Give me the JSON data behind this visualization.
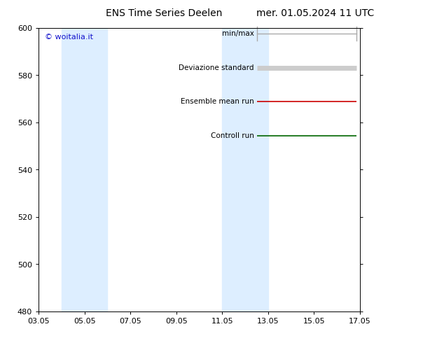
{
  "title_left": "ENS Time Series Deelen",
  "title_right": "mer. 01.05.2024 11 UTC",
  "ylim": [
    480,
    600
  ],
  "yticks": [
    480,
    500,
    520,
    540,
    560,
    580,
    600
  ],
  "xtick_labels": [
    "03.05",
    "05.05",
    "07.05",
    "09.05",
    "11.05",
    "13.05",
    "15.05",
    "17.05"
  ],
  "xtick_positions": [
    0,
    2,
    4,
    6,
    8,
    10,
    12,
    14
  ],
  "blue_bands": [
    {
      "x_start": 1.0,
      "x_end": 3.0
    },
    {
      "x_start": 8.0,
      "x_end": 10.0
    }
  ],
  "watermark": "© woitalia.it",
  "watermark_color": "#1111cc",
  "background_color": "#ffffff",
  "plot_bg_color": "#ffffff",
  "band_color": "#ddeeff",
  "legend_entries": [
    {
      "label": "min/max",
      "color": "#aaaaaa",
      "lw": 1.0
    },
    {
      "label": "Deviazione standard",
      "color": "#cccccc",
      "lw": 5.0
    },
    {
      "label": "Ensemble mean run",
      "color": "#cc0000",
      "lw": 1.2
    },
    {
      "label": "Controll run",
      "color": "#006600",
      "lw": 1.2
    }
  ],
  "font_size_title": 10,
  "font_size_axis": 8,
  "font_size_legend": 7.5,
  "font_size_watermark": 8,
  "spine_color": "#000000"
}
